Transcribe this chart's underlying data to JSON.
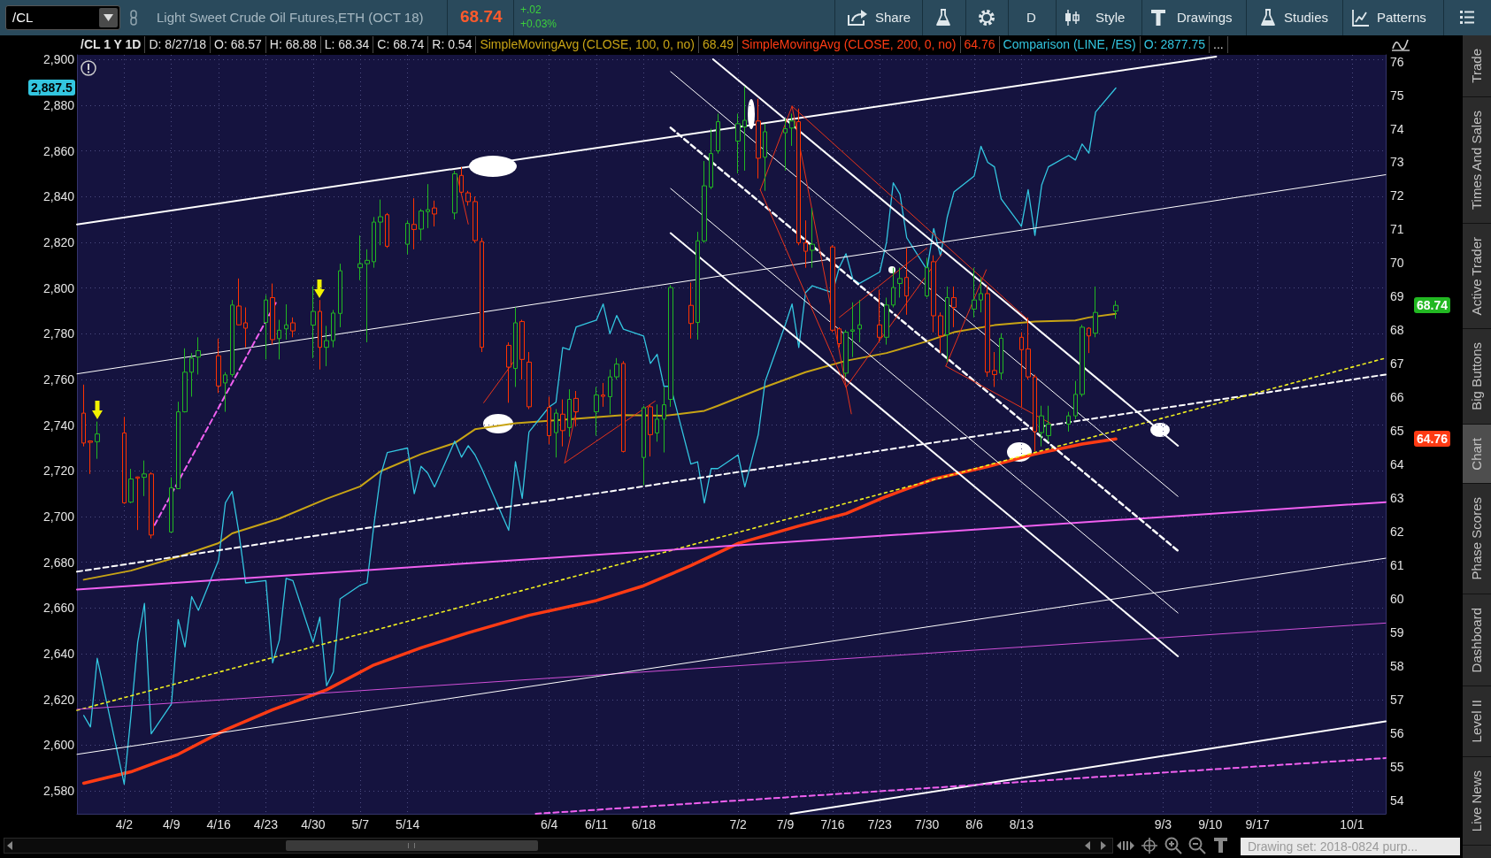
{
  "chart_data": {
    "type": "candlestick",
    "title": "Light Sweet Crude Oil Futures,ETH (OCT 18)",
    "x": [
      "2018-03-27",
      "2018-03-28",
      "2018-03-29",
      "2018-04-02",
      "2018-04-03",
      "2018-04-04",
      "2018-04-05",
      "2018-04-06",
      "2018-04-09",
      "2018-04-10",
      "2018-04-11",
      "2018-04-12",
      "2018-04-13",
      "2018-04-16",
      "2018-04-17",
      "2018-04-18",
      "2018-04-19",
      "2018-04-20",
      "2018-04-23",
      "2018-04-24",
      "2018-04-25",
      "2018-04-26",
      "2018-04-27",
      "2018-04-30",
      "2018-05-01",
      "2018-05-02",
      "2018-05-03",
      "2018-05-04",
      "2018-05-07",
      "2018-05-08",
      "2018-05-09",
      "2018-05-10",
      "2018-05-11",
      "2018-05-14",
      "2018-05-15",
      "2018-05-16",
      "2018-05-17",
      "2018-05-18",
      "2018-05-21",
      "2018-05-22",
      "2018-05-23",
      "2018-05-24",
      "2018-05-25",
      "2018-05-29",
      "2018-05-30",
      "2018-05-31",
      "2018-06-01",
      "2018-06-04",
      "2018-06-05",
      "2018-06-06",
      "2018-06-07",
      "2018-06-08",
      "2018-06-11",
      "2018-06-12",
      "2018-06-13",
      "2018-06-14",
      "2018-06-15",
      "2018-06-18",
      "2018-06-19",
      "2018-06-20",
      "2018-06-21",
      "2018-06-22",
      "2018-06-25",
      "2018-06-26",
      "2018-06-27",
      "2018-06-28",
      "2018-06-29",
      "2018-07-02",
      "2018-07-03",
      "2018-07-05",
      "2018-07-06",
      "2018-07-09",
      "2018-07-10",
      "2018-07-11",
      "2018-07-12",
      "2018-07-13",
      "2018-07-16",
      "2018-07-17",
      "2018-07-18",
      "2018-07-19",
      "2018-07-20",
      "2018-07-23",
      "2018-07-24",
      "2018-07-25",
      "2018-07-26",
      "2018-07-27",
      "2018-07-30",
      "2018-07-31",
      "2018-08-01",
      "2018-08-02",
      "2018-08-03",
      "2018-08-06",
      "2018-08-07",
      "2018-08-08",
      "2018-08-09",
      "2018-08-10",
      "2018-08-13",
      "2018-08-14",
      "2018-08-15",
      "2018-08-16",
      "2018-08-17",
      "2018-08-20",
      "2018-08-21",
      "2018-08-22",
      "2018-08-23",
      "2018-08-24",
      "2018-08-27"
    ],
    "ohlc": [
      [
        65.53,
        66.38,
        64.54,
        64.64
      ],
      [
        64.7,
        64.72,
        63.72,
        64.66
      ],
      [
        64.68,
        65.28,
        64.17,
        64.91
      ],
      [
        64.94,
        65.42,
        62.83,
        62.86
      ],
      [
        62.88,
        63.87,
        62.85,
        63.57
      ],
      [
        63.63,
        63.64,
        62.05,
        63.59
      ],
      [
        63.62,
        64.12,
        63.06,
        63.72
      ],
      [
        63.72,
        63.77,
        61.8,
        61.9
      ],
      [
        61.99,
        63.62,
        61.97,
        63.31
      ],
      [
        63.28,
        65.87,
        63.27,
        65.57
      ],
      [
        65.57,
        67.46,
        65.55,
        66.75
      ],
      [
        66.75,
        67.32,
        66.02,
        67.17
      ],
      [
        67.2,
        67.79,
        66.68,
        67.39
      ],
      [
        67.24,
        67.75,
        66.13,
        66.34
      ],
      [
        66.43,
        66.75,
        65.57,
        66.67
      ],
      [
        66.68,
        68.9,
        66.61,
        68.75
      ],
      [
        68.72,
        69.54,
        68.15,
        68.16
      ],
      [
        68.22,
        68.68,
        67.49,
        68.06
      ],
      [
        68.23,
        69.05,
        67.13,
        68.9
      ],
      [
        68.97,
        69.39,
        67.57,
        67.72
      ],
      [
        67.75,
        68.31,
        67.13,
        68.0
      ],
      [
        68.04,
        68.77,
        67.72,
        68.16
      ],
      [
        68.22,
        68.38,
        67.79,
        67.98
      ],
      [
        68.15,
        69.31,
        67.17,
        68.56
      ],
      [
        68.56,
        68.9,
        66.83,
        67.49
      ],
      [
        67.49,
        68.13,
        66.93,
        67.69
      ],
      [
        67.69,
        68.6,
        67.49,
        68.51
      ],
      [
        68.5,
        69.98,
        68.09,
        69.77
      ],
      [
        69.86,
        70.82,
        69.49,
        69.98
      ],
      [
        69.98,
        70.41,
        67.64,
        70.08
      ],
      [
        70.04,
        71.37,
        69.86,
        71.22
      ],
      [
        71.22,
        71.89,
        70.53,
        71.38
      ],
      [
        71.44,
        71.49,
        70.45,
        70.5
      ],
      [
        70.56,
        71.27,
        70.26,
        71.18
      ],
      [
        71.15,
        71.93,
        70.41,
        71.0
      ],
      [
        71.01,
        71.61,
        70.67,
        71.55
      ],
      [
        71.53,
        72.35,
        71.04,
        71.59
      ],
      [
        71.64,
        71.86,
        71.09,
        71.46
      ],
      [
        71.49,
        72.75,
        71.3,
        72.66
      ],
      [
        72.61,
        72.86,
        72.08,
        72.11
      ],
      [
        72.09,
        72.15,
        71.71,
        71.83
      ],
      [
        71.83,
        71.98,
        70.6,
        70.67
      ],
      [
        70.64,
        70.75,
        67.35,
        67.49
      ],
      [
        67.55,
        67.64,
        65.84,
        66.9
      ],
      [
        66.86,
        68.68,
        66.31,
        68.22
      ],
      [
        68.26,
        68.31,
        66.53,
        67.13
      ],
      [
        67.05,
        67.35,
        65.65,
        65.72
      ],
      [
        65.7,
        66.02,
        64.61,
        64.86
      ],
      [
        64.95,
        65.65,
        64.21,
        65.53
      ],
      [
        65.5,
        65.94,
        64.54,
        65.01
      ],
      [
        65.1,
        66.24,
        64.83,
        65.94
      ],
      [
        65.97,
        66.19,
        65.13,
        65.57
      ],
      [
        65.57,
        66.31,
        64.86,
        66.07
      ],
      [
        66.07,
        66.43,
        65.72,
        66.03
      ],
      [
        66.02,
        66.83,
        65.5,
        66.61
      ],
      [
        66.61,
        67.17,
        66.53,
        66.99
      ],
      [
        67.01,
        67.08,
        64.36,
        64.39
      ],
      [
        64.21,
        65.75,
        63.38,
        65.69
      ],
      [
        65.72,
        65.79,
        64.24,
        64.89
      ],
      [
        64.94,
        65.79,
        64.68,
        65.35
      ],
      [
        65.35,
        66.31,
        64.36,
        65.78
      ],
      [
        65.94,
        69.34,
        65.72,
        69.27
      ],
      [
        68.74,
        69.42,
        67.75,
        68.2
      ],
      [
        68.23,
        70.93,
        67.72,
        70.66
      ],
      [
        70.66,
        73.04,
        70.6,
        72.3
      ],
      [
        72.26,
        74.0,
        72.2,
        73.26
      ],
      [
        73.34,
        74.45,
        73.26,
        74.21
      ],
      [
        73.63,
        74.45,
        72.67,
        74.15
      ],
      [
        74.05,
        75.26,
        72.75,
        74.25
      ],
      [
        74.23,
        74.89,
        72.52,
        73.12
      ],
      [
        73.15,
        74.15,
        72.15,
        73.91
      ],
      [
        73.88,
        74.3,
        72.75,
        74.0
      ],
      [
        74.02,
        74.45,
        73.49,
        74.23
      ],
      [
        74.21,
        74.6,
        70.53,
        70.6
      ],
      [
        70.6,
        71.27,
        69.86,
        70.35
      ],
      [
        70.38,
        71.64,
        69.86,
        70.56
      ],
      [
        70.48,
        70.53,
        67.94,
        68.0
      ],
      [
        68.04,
        68.09,
        67.49,
        67.6
      ],
      [
        66.72,
        68.01,
        66.61,
        67.94
      ],
      [
        67.97,
        68.83,
        67.2,
        68.01
      ],
      [
        68.04,
        68.9,
        67.64,
        68.16
      ],
      [
        68.16,
        69.2,
        67.64,
        67.79
      ],
      [
        67.79,
        68.97,
        67.57,
        68.75
      ],
      [
        68.75,
        69.86,
        68.68,
        69.27
      ],
      [
        69.39,
        69.86,
        68.97,
        69.54
      ],
      [
        69.57,
        70.45,
        68.46,
        69.02
      ],
      [
        69.02,
        70.16,
        68.97,
        69.86
      ],
      [
        70.04,
        70.23,
        67.94,
        68.43
      ],
      [
        68.43,
        68.53,
        67.32,
        67.83
      ],
      [
        67.86,
        69.3,
        67.05,
        68.97
      ],
      [
        68.97,
        69.3,
        68.09,
        68.68
      ],
      [
        68.63,
        69.86,
        68.38,
        68.9
      ],
      [
        68.9,
        69.57,
        68.53,
        69.09
      ],
      [
        69.09,
        69.34,
        66.61,
        66.75
      ],
      [
        66.8,
        67.35,
        66.31,
        66.68
      ],
      [
        66.72,
        67.91,
        66.53,
        67.76
      ],
      [
        67.79,
        67.94,
        65.72,
        67.42
      ],
      [
        67.44,
        68.38,
        66.53,
        66.61
      ],
      [
        66.61,
        66.68,
        64.39,
        64.98
      ],
      [
        64.95,
        65.75,
        64.54,
        65.45
      ],
      [
        64.86,
        65.75,
        64.68,
        65.2
      ],
      [
        65.2,
        65.57,
        64.98,
        65.45
      ],
      [
        65.45,
        66.49,
        65.35,
        66.09
      ],
      [
        66.09,
        68.16,
        66.02,
        68.09
      ],
      [
        68.06,
        68.09,
        67.32,
        67.83
      ],
      [
        67.91,
        69.3,
        67.79,
        68.53
      ],
      [
        68.57,
        68.88,
        68.34,
        68.74
      ]
    ],
    "colors": [
      "#ff3300",
      "#ff3300",
      "#22b822",
      "#ff3300",
      "#22b822",
      "#ff3300",
      "#22b822",
      "#ff3300",
      "#22b822",
      "#22b822",
      "#22b822",
      "#22b822",
      "#22b822",
      "#ff3300",
      "#22b822",
      "#22b822",
      "#ff3300",
      "#ff3300",
      "#22b822",
      "#ff3300",
      "#22b822",
      "#22b822",
      "#ff3300",
      "#22b822",
      "#ff3300",
      "#22b822",
      "#22b822",
      "#22b822",
      "#22b822",
      "#22b822",
      "#22b822",
      "#22b822",
      "#ff3300",
      "#22b822",
      "#ff3300",
      "#22b822",
      "#22b822",
      "#ff3300",
      "#22b822",
      "#ff3300",
      "#ff3300",
      "#ff3300",
      "#ff3300",
      "#ff3300",
      "#22b822",
      "#ff3300",
      "#ff3300",
      "#ff3300",
      "#22b822",
      "#ff3300",
      "#22b822",
      "#ff3300",
      "#22b822",
      "#ff3300",
      "#22b822",
      "#22b822",
      "#ff3300",
      "#22b822",
      "#ff3300",
      "#22b822",
      "#22b822",
      "#22b822",
      "#ff3300",
      "#22b822",
      "#22b822",
      "#22b822",
      "#22b822",
      "#22b822",
      "#22b822",
      "#ff3300",
      "#22b822",
      "#22b822",
      "#22b822",
      "#ff3300",
      "#ff3300",
      "#22b822",
      "#ff3300",
      "#ff3300",
      "#22b822",
      "#22b822",
      "#22b822",
      "#ff3300",
      "#22b822",
      "#22b822",
      "#22b822",
      "#ff3300",
      "#22b822",
      "#ff3300",
      "#ff3300",
      "#22b822",
      "#ff3300",
      "#22b822",
      "#22b822",
      "#ff3300",
      "#ff3300",
      "#22b822",
      "#ff3300",
      "#ff3300",
      "#ff3300",
      "#22b822",
      "#22b822",
      "#22b822",
      "#22b822",
      "#22b822",
      "#ff3300",
      "#22b822",
      "#22b822"
    ],
    "xlim": [
      "2018-03-26",
      "2018-10-06"
    ],
    "xticks": [
      {
        "value": "2018-04-02",
        "label": "4/2"
      },
      {
        "value": "2018-04-09",
        "label": "4/9"
      },
      {
        "value": "2018-04-16",
        "label": "4/16"
      },
      {
        "value": "2018-04-23",
        "label": "4/23"
      },
      {
        "value": "2018-04-30",
        "label": "4/30"
      },
      {
        "value": "2018-05-07",
        "label": "5/7"
      },
      {
        "value": "2018-05-14",
        "label": "5/14"
      },
      {
        "value": "2018-06-04",
        "label": "6/4"
      },
      {
        "value": "2018-06-11",
        "label": "6/11"
      },
      {
        "value": "2018-06-18",
        "label": "6/18"
      },
      {
        "value": "2018-07-02",
        "label": "7/2"
      },
      {
        "value": "2018-07-09",
        "label": "7/9"
      },
      {
        "value": "2018-07-16",
        "label": "7/16"
      },
      {
        "value": "2018-07-23",
        "label": "7/23"
      },
      {
        "value": "2018-07-30",
        "label": "7/30"
      },
      {
        "value": "2018-08-06",
        "label": "8/6"
      },
      {
        "value": "2018-08-13",
        "label": "8/13"
      },
      {
        "value": "2018-09-03",
        "label": "9/3"
      },
      {
        "value": "2018-09-10",
        "label": "9/10"
      },
      {
        "value": "2018-09-17",
        "label": "9/17"
      },
      {
        "value": "2018-10-01",
        "label": "10/1"
      }
    ],
    "ylim": [
      53.6,
      76.2
    ],
    "yticks": [
      54,
      55,
      56,
      57,
      58,
      59,
      60,
      61,
      62,
      63,
      64,
      65,
      66,
      67,
      68,
      69,
      70,
      71,
      72,
      73,
      74,
      75,
      76
    ],
    "y2lim": [
      2570,
      2902
    ],
    "y2ticks": [
      {
        "value": 2580,
        "label": "2,580"
      },
      {
        "value": 2600,
        "label": "2,600"
      },
      {
        "value": 2620,
        "label": "2,620"
      },
      {
        "value": 2640,
        "label": "2,640"
      },
      {
        "value": 2660,
        "label": "2,660"
      },
      {
        "value": 2680,
        "label": "2,680"
      },
      {
        "value": 2700,
        "label": "2,700"
      },
      {
        "value": 2720,
        "label": "2,720"
      },
      {
        "value": 2740,
        "label": "2,740"
      },
      {
        "value": 2760,
        "label": "2,760"
      },
      {
        "value": 2780,
        "label": "2,780"
      },
      {
        "value": 2800,
        "label": "2,800"
      },
      {
        "value": 2820,
        "label": "2,820"
      },
      {
        "value": 2840,
        "label": "2,840"
      },
      {
        "value": 2860,
        "label": "2,860"
      },
      {
        "value": 2880,
        "label": "2,880"
      },
      {
        "value": 2900,
        "label": "2,900"
      }
    ],
    "grid": true,
    "legend": "top right",
    "series": [
      {
        "name": "SimpleMovingAvg (CLOSE, 100, 0, no)",
        "type": "line",
        "color": "#c8a415",
        "x": [
          "2018-03-27",
          "2018-04-03",
          "2018-04-10",
          "2018-04-16",
          "2018-04-18",
          "2018-04-25",
          "2018-05-02",
          "2018-05-07",
          "2018-05-10",
          "2018-05-16",
          "2018-05-21",
          "2018-05-24",
          "2018-05-30",
          "2018-06-07",
          "2018-06-15",
          "2018-06-21",
          "2018-06-27",
          "2018-06-29",
          "2018-07-06",
          "2018-07-12",
          "2018-07-18",
          "2018-07-24",
          "2018-07-30",
          "2018-08-03",
          "2018-08-09",
          "2018-08-15",
          "2018-08-21",
          "2018-08-23",
          "2018-08-27"
        ],
        "values": [
          60.57,
          60.84,
          61.25,
          61.66,
          61.95,
          62.39,
          62.98,
          63.35,
          63.8,
          64.31,
          64.64,
          65.05,
          65.23,
          65.35,
          65.47,
          65.45,
          65.6,
          65.75,
          66.31,
          66.75,
          67.09,
          67.32,
          67.67,
          67.94,
          68.15,
          68.26,
          68.29,
          68.38,
          68.49
        ]
      },
      {
        "name": "SimpleMovingAvg (CLOSE, 200, 0, no)",
        "type": "line",
        "color": "#ff3b14",
        "x": [
          "2018-03-27",
          "2018-04-03",
          "2018-04-10",
          "2018-04-17",
          "2018-04-24",
          "2018-05-02",
          "2018-05-09",
          "2018-05-16",
          "2018-05-23",
          "2018-06-01",
          "2018-06-11",
          "2018-06-18",
          "2018-06-25",
          "2018-07-02",
          "2018-07-11",
          "2018-07-18",
          "2018-07-24",
          "2018-07-31",
          "2018-08-08",
          "2018-08-15",
          "2018-08-22",
          "2018-08-27"
        ],
        "values": [
          54.51,
          54.85,
          55.37,
          56.1,
          56.7,
          57.29,
          58.03,
          58.54,
          58.99,
          59.51,
          59.95,
          60.39,
          60.99,
          61.65,
          62.17,
          62.54,
          63.05,
          63.57,
          63.94,
          64.31,
          64.61,
          64.76
        ]
      },
      {
        "name": "Comparison (LINE, /ES)",
        "type": "line",
        "color": "#33c6e0",
        "axis": "y2",
        "values": [
          2613,
          2608,
          2638,
          2583,
          2613,
          2645,
          2662,
          2605,
          2618,
          2655,
          2643,
          2665,
          2659,
          2681,
          2706,
          2711,
          2693,
          2671,
          2672,
          2636,
          2646,
          2673,
          2672,
          2645,
          2656,
          2626,
          2632,
          2664,
          2670,
          2671,
          2696,
          2718,
          2728,
          2730,
          2710,
          2722,
          2719,
          2713,
          2733,
          2726,
          2731,
          2727,
          2721,
          2694,
          2724,
          2708,
          2737,
          2748,
          2750,
          2774,
          2773,
          2783,
          2786,
          2793,
          2780,
          2788,
          2782,
          2779,
          2767,
          2771,
          2757,
          2757,
          2723,
          2724,
          2706,
          2721,
          2721,
          2727,
          2713,
          2736,
          2759,
          2784,
          2793,
          2774,
          2798,
          2801,
          2798,
          2809,
          2815,
          2804,
          2802,
          2807,
          2820,
          2846,
          2841,
          2822,
          2808,
          2826,
          2814,
          2831,
          2842,
          2849,
          2862,
          2855,
          2853,
          2839,
          2827,
          2843,
          2823,
          2845,
          2853,
          2858,
          2856,
          2863,
          2859,
          2877,
          2887.5
        ]
      },
      {
        "type": "line",
        "color": "#ffffff",
        "x": [
          "2018-03-26",
          "2018-09-10T21:00"
        ],
        "values": [
          71.15,
          76.15
        ]
      },
      {
        "type": "line",
        "color": "#ffffff",
        "x": [
          "2018-03-26",
          "2018-10-06"
        ],
        "values": [
          66.7,
          72.63
        ]
      },
      {
        "type": "line",
        "color": "#ffffff",
        "line_style": "dashed",
        "x": [
          "2018-03-26",
          "2018-10-06"
        ],
        "values": [
          60.81,
          66.68
        ]
      },
      {
        "type": "line",
        "color": "#f0f020",
        "line_style": "dotted",
        "x": [
          "2018-03-26",
          "2018-10-06"
        ],
        "values": [
          56.68,
          67.17
        ]
      },
      {
        "type": "line",
        "color": "#f060f0",
        "x": [
          "2018-03-26",
          "2018-10-06"
        ],
        "values": [
          60.28,
          62.88
        ]
      },
      {
        "type": "line",
        "color": "#d050d8",
        "x": [
          "2018-03-26",
          "2018-10-06"
        ],
        "values": [
          56.71,
          59.28
        ]
      },
      {
        "type": "line",
        "color": "#ffffff",
        "x": [
          "2018-03-26",
          "2018-10-06"
        ],
        "values": [
          55.37,
          61.21
        ]
      },
      {
        "type": "line",
        "color": "#ffffff",
        "x": [
          "2018-07-09T19:00",
          "2018-10-06"
        ],
        "values": [
          53.6,
          56.35
        ]
      },
      {
        "type": "line",
        "color": "#f060f0",
        "line_style": "dashed",
        "x": [
          "2018-06-02",
          "2018-10-06"
        ],
        "values": [
          53.6,
          55.26
        ]
      },
      {
        "type": "line",
        "color": "#f060f0",
        "line_style": "dashed",
        "x": [
          "2018-04-06T12:00",
          "2018-04-24T17:00"
        ],
        "values": [
          62.2,
          68.9
        ]
      },
      {
        "type": "line",
        "color": "#ffffff",
        "x": [
          "2018-06-28T07:00",
          "2018-09-05T05:00"
        ],
        "values": [
          76.07,
          64.56
        ]
      },
      {
        "type": "line",
        "color": "#ffffff",
        "x": [
          "2018-06-22",
          "2018-09-05T05:00"
        ],
        "values": [
          75.7,
          63.05
        ]
      },
      {
        "type": "line",
        "color": "#ffffff",
        "line_style": "dashed",
        "x": [
          "2018-06-22",
          "2018-09-05T05:00"
        ],
        "values": [
          74.03,
          61.43
        ]
      },
      {
        "type": "line",
        "color": "#ffffff",
        "x": [
          "2018-06-22",
          "2018-09-05T05:00"
        ],
        "values": [
          72.22,
          59.58
        ]
      },
      {
        "type": "line",
        "color": "#ffffff",
        "x": [
          "2018-06-22",
          "2018-09-05T05:00"
        ],
        "values": [
          70.89,
          58.29
        ]
      },
      {
        "type": "line",
        "color": "#e8341a",
        "x": [
          "2018-05-21T10:00",
          "2018-05-23"
        ],
        "values": [
          72.55,
          71.16
        ]
      },
      {
        "type": "line",
        "color": "#e8341a",
        "x": [
          "2018-05-25T07:00",
          "2018-05-29T19:00"
        ],
        "values": [
          65.84,
          67.08
        ]
      },
      {
        "type": "line",
        "color": "#e8341a",
        "x": [
          "2018-06-06T07:00",
          "2018-06-19T17:00"
        ],
        "values": [
          64.05,
          65.89
        ]
      },
      {
        "type": "line",
        "color": "#e8341a",
        "x": [
          "2018-06-06T07:00",
          "2018-06-08T07:00"
        ],
        "values": [
          64.05,
          65.83
        ]
      },
      {
        "type": "line",
        "color": "#e8341a",
        "x": [
          "2018-07-05T07:00",
          "2018-07-18"
        ],
        "values": [
          72.18,
          66.3
        ]
      },
      {
        "type": "line",
        "color": "#e8341a",
        "x": [
          "2018-07-05T07:00",
          "2018-07-10"
        ],
        "values": [
          72.18,
          74.67
        ]
      },
      {
        "type": "line",
        "color": "#e8341a",
        "x": [
          "2018-07-10",
          "2018-07-18T19:00"
        ],
        "values": [
          74.67,
          65.51
        ]
      },
      {
        "type": "line",
        "color": "#e8341a",
        "x": [
          "2018-07-10",
          "2018-08-14"
        ],
        "values": [
          74.67,
          68.31
        ]
      },
      {
        "type": "line",
        "color": "#e8341a",
        "x": [
          "2018-07-17",
          "2018-07-30"
        ],
        "values": [
          68.38,
          70.45
        ]
      },
      {
        "type": "line",
        "color": "#e8341a",
        "x": [
          "2018-07-18",
          "2018-08-01T05:00"
        ],
        "values": [
          66.3,
          70.27
        ]
      },
      {
        "type": "line",
        "color": "#e8341a",
        "x": [
          "2018-08-01T19:00",
          "2018-08-07T19:00"
        ],
        "values": [
          66.93,
          69.8
        ]
      },
      {
        "type": "line",
        "color": "#e8341a",
        "x": [
          "2018-08-01T19:00",
          "2018-08-17T07:00"
        ],
        "values": [
          66.93,
          65.23
        ]
      }
    ],
    "annotations": [
      "/CL",
      "68.74",
      "+.02",
      "+0.03%",
      "Share",
      "D",
      "Style",
      "Drawings",
      "Studies",
      "Patterns",
      "/CL 1 Y 1D",
      "D: 8/27/18",
      "O: 68.57",
      "H: 68.88",
      "L: 68.34",
      "C: 68.74",
      "R: 0.54",
      "68.49",
      "64.76",
      "O: 2877.75",
      "...",
      "Trade",
      "Times And Sales",
      "Active Trader",
      "Big Buttons",
      "Chart",
      "Phase Scores",
      "Dashboard",
      "Level II",
      "Live News",
      "Drawing set: 2018-0824 purp...",
      "2,887.5",
      "68.74",
      "64.76"
    ]
  }
}
